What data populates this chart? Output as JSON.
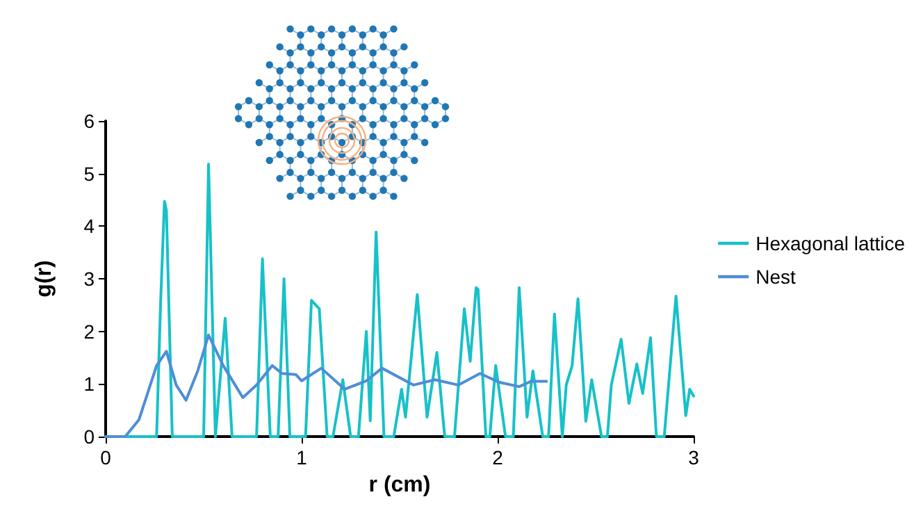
{
  "chart_data": {
    "type": "line",
    "xlabel": "r (cm)",
    "ylabel": "g(r)",
    "xlim": [
      0,
      3
    ],
    "xticks": [
      0,
      1,
      2,
      3
    ],
    "ylim": [
      0,
      6
    ],
    "yticks": [
      0,
      1,
      2,
      3,
      4,
      5,
      6
    ],
    "grid": false,
    "legend": "right",
    "marker": "none",
    "line_style": "solid",
    "series": [
      {
        "name": "Hexagonal lattice",
        "color": "#17c1c8",
        "x": [
          0,
          0.26,
          0.28,
          0.3,
          0.31,
          0.34,
          0.5,
          0.525,
          0.56,
          0.61,
          0.645,
          0.77,
          0.8,
          0.84,
          0.88,
          0.91,
          0.94,
          1.02,
          1.05,
          1.07,
          1.09,
          1.13,
          1.16,
          1.21,
          1.25,
          1.29,
          1.33,
          1.35,
          1.38,
          1.42,
          1.47,
          1.51,
          1.53,
          1.59,
          1.64,
          1.69,
          1.73,
          1.78,
          1.83,
          1.86,
          1.89,
          1.9,
          1.94,
          1.96,
          1.99,
          2.04,
          2.08,
          2.11,
          2.15,
          2.18,
          2.23,
          2.26,
          2.29,
          2.33,
          2.35,
          2.38,
          2.41,
          2.45,
          2.48,
          2.53,
          2.56,
          2.58,
          2.63,
          2.67,
          2.71,
          2.74,
          2.78,
          2.81,
          2.85,
          2.91,
          2.96,
          2.98,
          3.0
        ],
        "values": [
          0,
          0,
          2.5,
          4.47,
          4.3,
          0,
          0,
          5.18,
          0,
          2.25,
          0,
          0,
          3.38,
          0,
          0,
          3.0,
          0,
          0,
          2.59,
          2.51,
          2.43,
          0,
          0,
          1.08,
          0,
          0,
          2.0,
          0.3,
          3.89,
          0,
          0,
          0.9,
          0.37,
          2.7,
          0.37,
          1.6,
          0,
          0,
          2.43,
          1.43,
          2.83,
          2.8,
          0,
          0,
          1.35,
          0,
          0,
          2.83,
          0.37,
          1.25,
          0,
          0,
          2.33,
          0,
          0.98,
          1.35,
          2.62,
          0.29,
          1.08,
          0,
          0,
          0.98,
          1.85,
          0.63,
          1.38,
          0.82,
          1.88,
          0,
          0,
          2.67,
          0.4,
          0.9,
          0.77
        ]
      },
      {
        "name": "Nest",
        "color": "#4f8dd6",
        "x": [
          0,
          0.1,
          0.17,
          0.26,
          0.31,
          0.36,
          0.41,
          0.47,
          0.525,
          0.6,
          0.7,
          0.77,
          0.85,
          0.9,
          0.97,
          1.0,
          1.1,
          1.22,
          1.33,
          1.41,
          1.57,
          1.68,
          1.8,
          1.91,
          2.01,
          2.11,
          2.17,
          2.25
        ],
        "values": [
          0,
          0,
          0.32,
          1.35,
          1.62,
          0.98,
          0.69,
          1.25,
          1.93,
          1.35,
          0.74,
          0.98,
          1.35,
          1.2,
          1.18,
          1.06,
          1.3,
          0.9,
          1.06,
          1.3,
          0.98,
          1.08,
          0.98,
          1.2,
          1.03,
          0.95,
          1.05,
          1.05
        ]
      }
    ]
  }
}
